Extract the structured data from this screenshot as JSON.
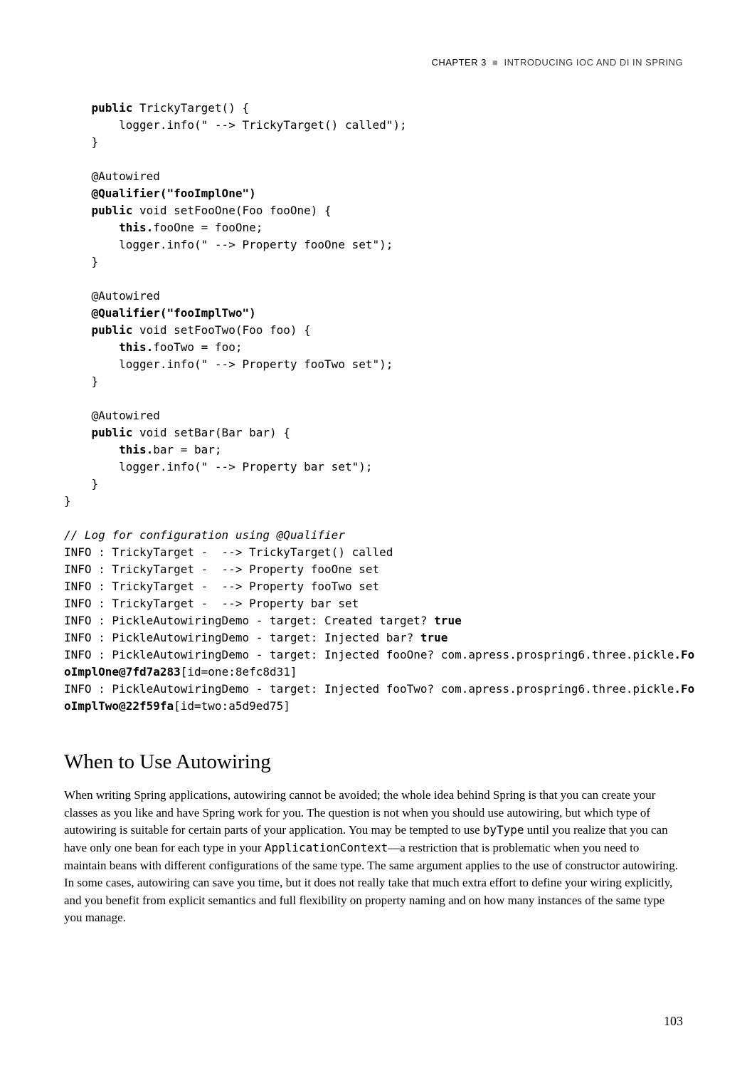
{
  "header": {
    "chapter": "CHAPTER 3",
    "separator": "■",
    "title": "INTRODUCING IOC AND DI IN SPRING"
  },
  "code": {
    "line01a": "    ",
    "line01b": "public",
    "line01c": " TrickyTarget() {",
    "line02": "        logger.info(\" --> TrickyTarget() called\");",
    "line03": "    }",
    "line04": "",
    "line05": "    @Autowired",
    "line06a": "    ",
    "line06b": "@Qualifier(\"fooImplOne\")",
    "line07a": "    ",
    "line07b": "public",
    "line07c": " void setFooOne(Foo fooOne) {",
    "line08a": "        ",
    "line08b": "this.",
    "line08c": "fooOne = fooOne;",
    "line09": "        logger.info(\" --> Property fooOne set\");",
    "line10": "    }",
    "line11": "",
    "line12": "    @Autowired",
    "line13a": "    ",
    "line13b": "@Qualifier(\"fooImplTwo\")",
    "line14a": "    ",
    "line14b": "public",
    "line14c": " void setFooTwo(Foo foo) {",
    "line15a": "        ",
    "line15b": "this.",
    "line15c": "fooTwo = foo;",
    "line16": "        logger.info(\" --> Property fooTwo set\");",
    "line17": "    }",
    "line18": "",
    "line19": "    @Autowired",
    "line20a": "    ",
    "line20b": "public",
    "line20c": " void setBar(Bar bar) {",
    "line21a": "        ",
    "line21b": "this.",
    "line21c": "bar = bar;",
    "line22": "        logger.info(\" --> Property bar set\");",
    "line23": "    }",
    "line24": "}",
    "line25": "",
    "line26": "// Log for configuration using @Qualifier",
    "line27": "INFO : TrickyTarget -  --> TrickyTarget() called",
    "line28": "INFO : TrickyTarget -  --> Property fooOne set",
    "line29": "INFO : TrickyTarget -  --> Property fooTwo set",
    "line30": "INFO : TrickyTarget -  --> Property bar set",
    "line31a": "INFO : PickleAutowiringDemo - target: Created target? ",
    "line31b": "true",
    "line32a": "INFO : PickleAutowiringDemo - target: Injected bar? ",
    "line32b": "true",
    "line33a": "INFO : PickleAutowiringDemo - target: Injected fooOne? com.apress.prospring6.three.pickle",
    "line33b": ".Fo",
    "line34a": "oImplOne@7fd7a283",
    "line34b": "[id=one:8efc8d31]",
    "line35a": "INFO : PickleAutowiringDemo - target: Injected fooTwo? com.apress.prospring6.three.pickle",
    "line35b": ".Fo",
    "line36a": "oImplTwo@22f59fa",
    "line36b": "[id=two:a5d9ed75]"
  },
  "section": {
    "title": "When to Use Autowiring",
    "p1a": "When writing Spring applications, autowiring cannot be avoided; the whole idea behind Spring is that you can create your classes as you like and have Spring work for you. The question is not when you should use autowiring, but which type of autowiring is suitable for certain parts of your application. You may be tempted to use ",
    "p1b": "byType",
    "p1c": " until you realize that you can have only one bean for each type in your ",
    "p1d": "ApplicationContext",
    "p1e": "—a restriction that is problematic when you need to maintain beans with different configurations of the same type. The same argument applies to the use of constructor autowiring. In some cases, autowiring can save you time, but it does not really take that much extra effort to define your wiring explicitly, and you benefit from explicit semantics and full flexibility on property naming and on how many instances of the same type you manage."
  },
  "pageNumber": "103"
}
